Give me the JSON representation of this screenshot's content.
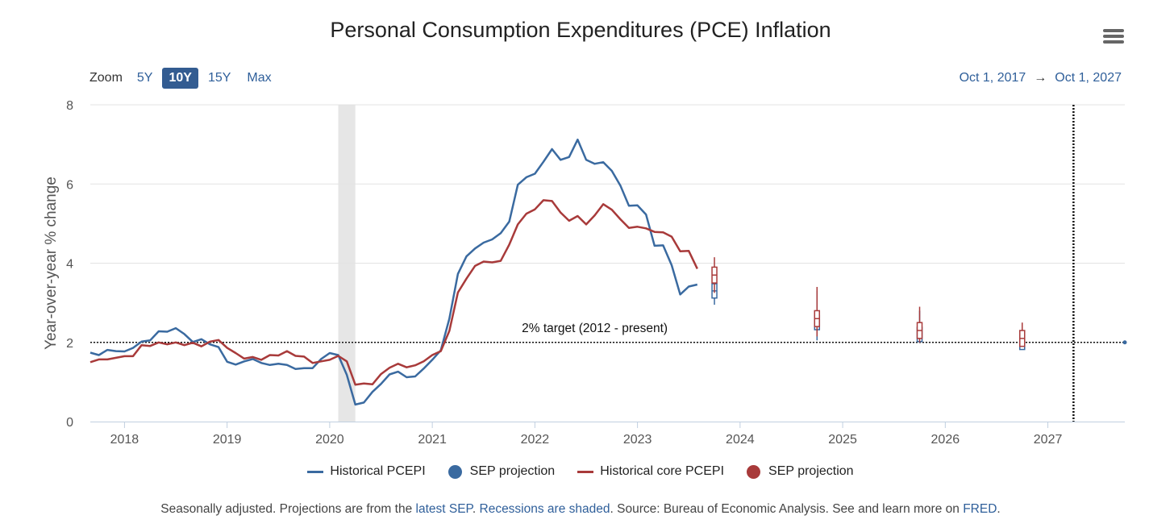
{
  "chart_data": {
    "type": "line",
    "title": "Personal Consumption Expenditures (PCE) Inflation",
    "ylabel": "Year-over-year % change",
    "ylim": [
      0,
      8
    ],
    "yticks": [
      0,
      2,
      4,
      6,
      8
    ],
    "xlim": [
      "2017-09",
      "2027-10"
    ],
    "xticks": [
      "2018",
      "2019",
      "2020",
      "2021",
      "2022",
      "2023",
      "2024",
      "2025",
      "2026",
      "2027"
    ],
    "grid": "horizontal",
    "legend_position": "bottom",
    "recession_shading": [
      [
        "2020-02",
        "2020-04"
      ]
    ],
    "target_line": {
      "value": 2,
      "label": "2% target (2012 - present)"
    },
    "vertical_marker": "2027-04",
    "series": [
      {
        "name": "Historical PCEPI",
        "color": "#3a6aa0",
        "x": [
          "2017-09",
          "2017-10",
          "2017-11",
          "2017-12",
          "2018-01",
          "2018-02",
          "2018-03",
          "2018-04",
          "2018-05",
          "2018-06",
          "2018-07",
          "2018-08",
          "2018-09",
          "2018-10",
          "2018-11",
          "2018-12",
          "2019-01",
          "2019-02",
          "2019-03",
          "2019-04",
          "2019-05",
          "2019-06",
          "2019-07",
          "2019-08",
          "2019-09",
          "2019-10",
          "2019-11",
          "2019-12",
          "2020-01",
          "2020-02",
          "2020-03",
          "2020-04",
          "2020-05",
          "2020-06",
          "2020-07",
          "2020-08",
          "2020-09",
          "2020-10",
          "2020-11",
          "2020-12",
          "2021-01",
          "2021-02",
          "2021-03",
          "2021-04",
          "2021-05",
          "2021-06",
          "2021-07",
          "2021-08",
          "2021-09",
          "2021-10",
          "2021-11",
          "2021-12",
          "2022-01",
          "2022-02",
          "2022-03",
          "2022-04",
          "2022-05",
          "2022-06",
          "2022-07",
          "2022-08",
          "2022-09",
          "2022-10",
          "2022-11",
          "2022-12",
          "2023-01",
          "2023-02",
          "2023-03",
          "2023-04",
          "2023-05",
          "2023-06",
          "2023-07",
          "2023-08"
        ],
        "values": [
          1.74,
          1.68,
          1.81,
          1.78,
          1.77,
          1.86,
          2.02,
          2.05,
          2.28,
          2.27,
          2.36,
          2.21,
          2.01,
          2.08,
          1.95,
          1.88,
          1.51,
          1.44,
          1.52,
          1.58,
          1.48,
          1.43,
          1.46,
          1.43,
          1.33,
          1.35,
          1.35,
          1.58,
          1.73,
          1.68,
          1.18,
          0.43,
          0.48,
          0.75,
          0.95,
          1.19,
          1.26,
          1.12,
          1.14,
          1.34,
          1.56,
          1.8,
          2.6,
          3.73,
          4.17,
          4.37,
          4.52,
          4.6,
          4.76,
          5.05,
          5.98,
          6.17,
          6.26,
          6.56,
          6.88,
          6.61,
          6.68,
          7.12,
          6.61,
          6.51,
          6.55,
          6.33,
          5.96,
          5.45,
          5.46,
          5.23,
          4.44,
          4.45,
          3.95,
          3.21,
          3.41,
          3.46
        ]
      },
      {
        "name": "Historical core PCEPI",
        "color": "#a83a3a",
        "x": [
          "2017-09",
          "2017-10",
          "2017-11",
          "2017-12",
          "2018-01",
          "2018-02",
          "2018-03",
          "2018-04",
          "2018-05",
          "2018-06",
          "2018-07",
          "2018-08",
          "2018-09",
          "2018-10",
          "2018-11",
          "2018-12",
          "2019-01",
          "2019-02",
          "2019-03",
          "2019-04",
          "2019-05",
          "2019-06",
          "2019-07",
          "2019-08",
          "2019-09",
          "2019-10",
          "2019-11",
          "2019-12",
          "2020-01",
          "2020-02",
          "2020-03",
          "2020-04",
          "2020-05",
          "2020-06",
          "2020-07",
          "2020-08",
          "2020-09",
          "2020-10",
          "2020-11",
          "2020-12",
          "2021-01",
          "2021-02",
          "2021-03",
          "2021-04",
          "2021-05",
          "2021-06",
          "2021-07",
          "2021-08",
          "2021-09",
          "2021-10",
          "2021-11",
          "2021-12",
          "2022-01",
          "2022-02",
          "2022-03",
          "2022-04",
          "2022-05",
          "2022-06",
          "2022-07",
          "2022-08",
          "2022-09",
          "2022-10",
          "2022-11",
          "2022-12",
          "2023-01",
          "2023-02",
          "2023-03",
          "2023-04",
          "2023-05",
          "2023-06",
          "2023-07",
          "2023-08"
        ],
        "values": [
          1.5,
          1.57,
          1.57,
          1.61,
          1.65,
          1.65,
          1.93,
          1.91,
          2.0,
          1.95,
          2.0,
          1.93,
          1.99,
          1.9,
          2.02,
          2.06,
          1.86,
          1.73,
          1.59,
          1.63,
          1.56,
          1.68,
          1.67,
          1.78,
          1.66,
          1.64,
          1.48,
          1.52,
          1.56,
          1.66,
          1.52,
          0.93,
          0.96,
          0.94,
          1.2,
          1.36,
          1.46,
          1.37,
          1.42,
          1.52,
          1.68,
          1.78,
          2.29,
          3.26,
          3.61,
          3.93,
          4.04,
          4.02,
          4.06,
          4.47,
          4.98,
          5.25,
          5.36,
          5.59,
          5.57,
          5.28,
          5.07,
          5.19,
          4.98,
          5.21,
          5.49,
          5.35,
          5.11,
          4.89,
          4.92,
          4.88,
          4.79,
          4.78,
          4.67,
          4.3,
          4.31,
          3.86
        ]
      },
      {
        "name": "SEP projection",
        "color": "#3a6aa0",
        "type": "boxplot",
        "x": [
          "2023-10",
          "2024-10",
          "2025-10",
          "2026-10",
          "2027-10"
        ],
        "values": [
          3.3,
          2.5,
          2.2,
          2.0,
          2.0
        ]
      },
      {
        "name": "SEP projection",
        "color": "#a83a3a",
        "type": "boxplot",
        "x": [
          "2023-10",
          "2024-10",
          "2025-10",
          "2026-10"
        ],
        "values": [
          3.7,
          2.6,
          2.3,
          2.1
        ]
      }
    ]
  },
  "controls": {
    "zoom_label": "Zoom",
    "zoom_options": [
      "5Y",
      "10Y",
      "15Y",
      "Max"
    ],
    "zoom_selected": "10Y",
    "range_start": "Oct 1, 2017",
    "range_arrow": "→",
    "range_end": "Oct 1, 2027"
  },
  "legend": {
    "items": [
      {
        "label": "Historical PCEPI",
        "symbol": "line",
        "color": "#3a6aa0"
      },
      {
        "label": "SEP projection",
        "symbol": "dot",
        "color": "#3a6aa0"
      },
      {
        "label": "Historical core PCEPI",
        "symbol": "line",
        "color": "#a83a3a"
      },
      {
        "label": "SEP projection",
        "symbol": "dot",
        "color": "#a83a3a"
      }
    ]
  },
  "footnote": {
    "part1": "Seasonally adjusted. Projections are from the ",
    "link1": "latest SEP",
    "part2": ". ",
    "link2": "Recessions are shaded",
    "part3": ". Source: Bureau of Economic Analysis. See and learn more on ",
    "link3": "FRED",
    "part4": "."
  },
  "icons": {
    "menu": "hamburger-menu-icon"
  }
}
